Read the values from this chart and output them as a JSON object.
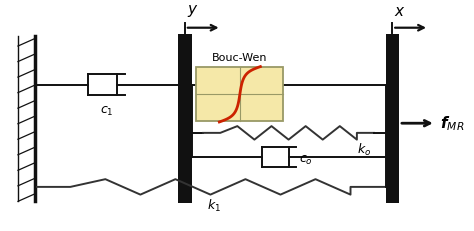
{
  "fig_width": 4.74,
  "fig_height": 2.31,
  "dpi": 100,
  "plate_color": "#111111",
  "spring_color": "#333333",
  "line_color": "#111111",
  "bouc_box_color": "#f5e8a8",
  "bouc_curve_color": "#cc2200",
  "label_color": "#000000",
  "arrow_color": "#111111",
  "wall_color": "#111111"
}
